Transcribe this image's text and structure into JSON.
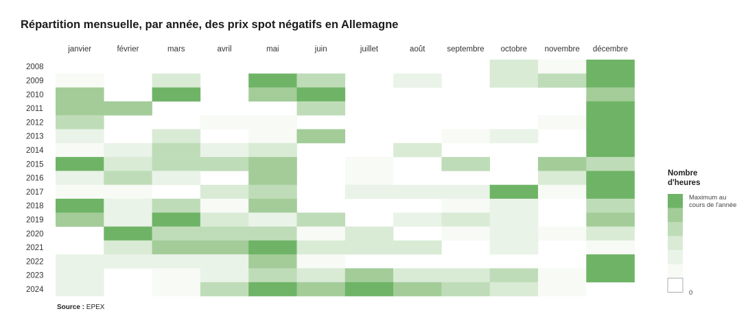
{
  "title": "Répartition mensuelle, par année, des prix spot négatifs en Allemagne",
  "source_label": "Source :",
  "source_value": "EPEX",
  "legend": {
    "title_line1": "Nombre",
    "title_line2": "d'heures",
    "max_label": "Maximum au cours de l'année",
    "min_label": "0",
    "colors": [
      "#ffffff",
      "#f7faf5",
      "#eaf3e8",
      "#d9ebd5",
      "#bfdcb8",
      "#a3cc99",
      "#6fb466"
    ]
  },
  "chart_data": {
    "type": "heatmap",
    "title": "Répartition mensuelle, par année, des prix spot négatifs en Allemagne",
    "x_categories": [
      "janvier",
      "février",
      "mars",
      "avril",
      "mai",
      "juin",
      "juillet",
      "août",
      "septembre",
      "octobre",
      "novembre",
      "décembre"
    ],
    "y_categories": [
      "2008",
      "2009",
      "2010",
      "2011",
      "2012",
      "2013",
      "2014",
      "2015",
      "2016",
      "2017",
      "2018",
      "2019",
      "2020",
      "2021",
      "2022",
      "2023",
      "2024"
    ],
    "value_scale": "relative level 0 (0 hours) to 6 (maximum of the year)",
    "values": [
      [
        0,
        0,
        0,
        0,
        0,
        0,
        0,
        0,
        0,
        3,
        1,
        6
      ],
      [
        1,
        0,
        3,
        0,
        6,
        4,
        0,
        2,
        0,
        3,
        4,
        6
      ],
      [
        5,
        0,
        6,
        0,
        5,
        6,
        0,
        0,
        0,
        0,
        0,
        5
      ],
      [
        5,
        5,
        0,
        0,
        0,
        4,
        0,
        0,
        0,
        0,
        0,
        6
      ],
      [
        4,
        0,
        0,
        1,
        1,
        0,
        0,
        0,
        0,
        0,
        1,
        6
      ],
      [
        2,
        0,
        3,
        0,
        1,
        5,
        0,
        0,
        1,
        2,
        0,
        6
      ],
      [
        1,
        2,
        4,
        2,
        3,
        0,
        0,
        3,
        0,
        0,
        0,
        6
      ],
      [
        6,
        3,
        4,
        4,
        5,
        0,
        1,
        0,
        4,
        0,
        5,
        4
      ],
      [
        2,
        4,
        2,
        0,
        5,
        0,
        1,
        0,
        0,
        0,
        3,
        6
      ],
      [
        1,
        1,
        0,
        3,
        4,
        0,
        2,
        2,
        2,
        6,
        1,
        6
      ],
      [
        6,
        2,
        4,
        1,
        5,
        0,
        0,
        0,
        1,
        2,
        0,
        4
      ],
      [
        5,
        2,
        6,
        3,
        2,
        4,
        0,
        2,
        3,
        2,
        0,
        5
      ],
      [
        0,
        6,
        4,
        4,
        4,
        1,
        3,
        0,
        1,
        2,
        1,
        3
      ],
      [
        0,
        3,
        5,
        5,
        6,
        3,
        3,
        3,
        0,
        2,
        0,
        1
      ],
      [
        2,
        2,
        2,
        2,
        5,
        1,
        0,
        0,
        0,
        0,
        0,
        6
      ],
      [
        2,
        0,
        1,
        2,
        4,
        3,
        5,
        3,
        3,
        4,
        1,
        6
      ],
      [
        2,
        0,
        1,
        4,
        6,
        5,
        6,
        5,
        4,
        3,
        1,
        0
      ]
    ]
  }
}
